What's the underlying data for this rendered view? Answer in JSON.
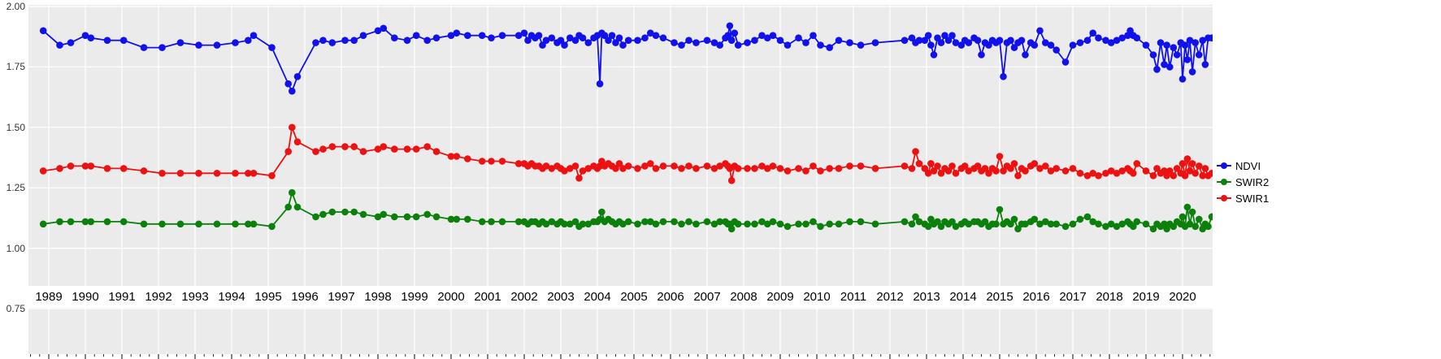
{
  "chart_data": {
    "type": "line",
    "title": "",
    "xlabel": "",
    "ylabel": "",
    "grid": true,
    "panel_bg": "#EBEBEB",
    "grid_color": "#FFFFFF",
    "tick_color": "#333333",
    "x_range": [
      1988.44,
      2020.82
    ],
    "y_range": [
      0.56,
      2.01
    ],
    "x_ticks": [
      1989,
      1990,
      1991,
      1992,
      1993,
      1994,
      1995,
      1996,
      1997,
      1998,
      1999,
      2000,
      2001,
      2002,
      2003,
      2004,
      2005,
      2006,
      2007,
      2008,
      2009,
      2010,
      2011,
      2012,
      2013,
      2014,
      2015,
      2016,
      2017,
      2018,
      2019,
      2020
    ],
    "x_minor_tick_step": 0.25,
    "y_ticks": [
      {
        "label": "2.00",
        "value": 2.0
      },
      {
        "label": "1.75",
        "value": 1.75
      },
      {
        "label": "1.50",
        "value": 1.5
      },
      {
        "label": "1.25",
        "value": 1.25
      },
      {
        "label": "1.00",
        "value": 1.0
      },
      {
        "label": "0.75",
        "value": 0.75
      }
    ],
    "legend": {
      "position": "right",
      "items": [
        {
          "label": "NDVI",
          "color": "#1111EE"
        },
        {
          "label": "SWIR2",
          "color": "#0B800B"
        },
        {
          "label": "SWIR1",
          "color": "#EE1111"
        }
      ]
    },
    "x": [
      1988.85,
      1989.3,
      1989.6,
      1990.0,
      1990.15,
      1990.6,
      1991.05,
      1991.6,
      1992.1,
      1992.6,
      1993.1,
      1993.6,
      1994.1,
      1994.45,
      1994.6,
      1995.1,
      1995.55,
      1995.65,
      1995.8,
      1996.3,
      1996.5,
      1996.75,
      1997.1,
      1997.35,
      1997.6,
      1998.0,
      1998.15,
      1998.45,
      1998.8,
      1999.05,
      1999.35,
      1999.6,
      2000.0,
      2000.15,
      2000.45,
      2000.85,
      2001.1,
      2001.4,
      2001.85,
      2002.0,
      2002.1,
      2002.2,
      2002.3,
      2002.4,
      2002.5,
      2002.6,
      2002.75,
      2002.9,
      2003.0,
      2003.1,
      2003.25,
      2003.4,
      2003.5,
      2003.6,
      2003.75,
      2003.9,
      2004.0,
      2004.07,
      2004.12,
      2004.2,
      2004.3,
      2004.4,
      2004.5,
      2004.6,
      2004.7,
      2004.85,
      2005.1,
      2005.3,
      2005.45,
      2005.6,
      2005.8,
      2006.1,
      2006.3,
      2006.5,
      2006.7,
      2007.0,
      2007.2,
      2007.35,
      2007.5,
      2007.57,
      2007.62,
      2007.67,
      2007.75,
      2007.85,
      2008.1,
      2008.3,
      2008.5,
      2008.65,
      2008.8,
      2009.0,
      2009.2,
      2009.5,
      2009.7,
      2009.9,
      2010.1,
      2010.35,
      2010.6,
      2010.9,
      2011.2,
      2011.6,
      2012.4,
      2012.6,
      2012.7,
      2012.8,
      2012.95,
      2013.05,
      2013.12,
      2013.2,
      2013.3,
      2013.4,
      2013.5,
      2013.6,
      2013.7,
      2013.8,
      2013.95,
      2014.05,
      2014.15,
      2014.3,
      2014.4,
      2014.5,
      2014.6,
      2014.7,
      2014.8,
      2014.9,
      2015.0,
      2015.1,
      2015.2,
      2015.3,
      2015.4,
      2015.5,
      2015.6,
      2015.7,
      2015.85,
      2015.95,
      2016.1,
      2016.25,
      2016.4,
      2016.55,
      2016.8,
      2017.0,
      2017.2,
      2017.4,
      2017.55,
      2017.7,
      2017.9,
      2018.05,
      2018.2,
      2018.35,
      2018.5,
      2018.57,
      2018.65,
      2018.75,
      2019.0,
      2019.2,
      2019.3,
      2019.4,
      2019.5,
      2019.57,
      2019.65,
      2019.75,
      2019.85,
      2019.95,
      2020.0,
      2020.07,
      2020.13,
      2020.2,
      2020.27,
      2020.35,
      2020.45,
      2020.55,
      2020.62,
      2020.7,
      2020.8
    ],
    "series": [
      {
        "name": "NDVI",
        "color": "#1111EE",
        "values": [
          1.9,
          1.84,
          1.85,
          1.88,
          1.87,
          1.86,
          1.86,
          1.83,
          1.83,
          1.85,
          1.84,
          1.84,
          1.85,
          1.86,
          1.88,
          1.83,
          1.68,
          1.65,
          1.71,
          1.85,
          1.86,
          1.85,
          1.86,
          1.86,
          1.88,
          1.9,
          1.91,
          1.87,
          1.86,
          1.88,
          1.86,
          1.87,
          1.88,
          1.89,
          1.88,
          1.88,
          1.87,
          1.88,
          1.88,
          1.89,
          1.86,
          1.88,
          1.87,
          1.88,
          1.84,
          1.86,
          1.87,
          1.85,
          1.86,
          1.84,
          1.87,
          1.86,
          1.88,
          1.87,
          1.85,
          1.87,
          1.88,
          1.68,
          1.89,
          1.88,
          1.86,
          1.88,
          1.85,
          1.87,
          1.84,
          1.86,
          1.86,
          1.87,
          1.89,
          1.88,
          1.87,
          1.85,
          1.84,
          1.86,
          1.85,
          1.86,
          1.85,
          1.84,
          1.87,
          1.88,
          1.92,
          1.86,
          1.89,
          1.84,
          1.85,
          1.86,
          1.88,
          1.87,
          1.88,
          1.86,
          1.84,
          1.87,
          1.85,
          1.88,
          1.84,
          1.83,
          1.86,
          1.85,
          1.84,
          1.85,
          1.86,
          1.87,
          1.85,
          1.86,
          1.86,
          1.88,
          1.84,
          1.8,
          1.87,
          1.85,
          1.88,
          1.86,
          1.88,
          1.85,
          1.84,
          1.86,
          1.85,
          1.87,
          1.86,
          1.8,
          1.85,
          1.84,
          1.86,
          1.85,
          1.86,
          1.71,
          1.85,
          1.86,
          1.83,
          1.85,
          1.86,
          1.8,
          1.85,
          1.84,
          1.9,
          1.85,
          1.84,
          1.82,
          1.77,
          1.84,
          1.85,
          1.86,
          1.89,
          1.87,
          1.86,
          1.85,
          1.86,
          1.87,
          1.88,
          1.9,
          1.88,
          1.87,
          1.84,
          1.8,
          1.74,
          1.85,
          1.76,
          1.84,
          1.75,
          1.83,
          1.8,
          1.85,
          1.7,
          1.84,
          1.78,
          1.86,
          1.73,
          1.85,
          1.8,
          1.86,
          1.76,
          1.87,
          1.87
        ]
      },
      {
        "name": "SWIR2",
        "color": "#0B800B",
        "values": [
          1.1,
          1.11,
          1.11,
          1.11,
          1.11,
          1.11,
          1.11,
          1.1,
          1.1,
          1.1,
          1.1,
          1.1,
          1.1,
          1.1,
          1.1,
          1.09,
          1.17,
          1.23,
          1.17,
          1.13,
          1.14,
          1.15,
          1.15,
          1.15,
          1.14,
          1.13,
          1.14,
          1.13,
          1.13,
          1.13,
          1.14,
          1.13,
          1.12,
          1.12,
          1.12,
          1.11,
          1.11,
          1.11,
          1.11,
          1.11,
          1.1,
          1.11,
          1.11,
          1.1,
          1.11,
          1.1,
          1.11,
          1.1,
          1.11,
          1.1,
          1.1,
          1.11,
          1.09,
          1.1,
          1.1,
          1.11,
          1.11,
          1.12,
          1.15,
          1.11,
          1.12,
          1.11,
          1.1,
          1.11,
          1.1,
          1.11,
          1.1,
          1.11,
          1.11,
          1.1,
          1.11,
          1.11,
          1.1,
          1.11,
          1.1,
          1.11,
          1.1,
          1.11,
          1.11,
          1.1,
          1.1,
          1.08,
          1.11,
          1.1,
          1.1,
          1.1,
          1.11,
          1.1,
          1.11,
          1.1,
          1.09,
          1.1,
          1.1,
          1.11,
          1.09,
          1.1,
          1.1,
          1.11,
          1.11,
          1.1,
          1.11,
          1.1,
          1.13,
          1.11,
          1.1,
          1.09,
          1.12,
          1.1,
          1.11,
          1.09,
          1.11,
          1.1,
          1.11,
          1.09,
          1.1,
          1.11,
          1.1,
          1.11,
          1.11,
          1.1,
          1.11,
          1.09,
          1.1,
          1.1,
          1.16,
          1.1,
          1.11,
          1.1,
          1.12,
          1.08,
          1.1,
          1.1,
          1.11,
          1.12,
          1.1,
          1.11,
          1.1,
          1.1,
          1.09,
          1.1,
          1.12,
          1.13,
          1.11,
          1.1,
          1.09,
          1.1,
          1.09,
          1.1,
          1.11,
          1.1,
          1.09,
          1.11,
          1.1,
          1.08,
          1.1,
          1.09,
          1.1,
          1.08,
          1.1,
          1.09,
          1.11,
          1.1,
          1.13,
          1.09,
          1.17,
          1.1,
          1.15,
          1.09,
          1.12,
          1.08,
          1.1,
          1.09,
          1.13
        ]
      },
      {
        "name": "SWIR1",
        "color": "#EE1111",
        "values": [
          1.32,
          1.33,
          1.34,
          1.34,
          1.34,
          1.33,
          1.33,
          1.32,
          1.31,
          1.31,
          1.31,
          1.31,
          1.31,
          1.31,
          1.31,
          1.3,
          1.4,
          1.5,
          1.44,
          1.4,
          1.41,
          1.42,
          1.42,
          1.42,
          1.4,
          1.41,
          1.42,
          1.41,
          1.41,
          1.41,
          1.42,
          1.4,
          1.38,
          1.38,
          1.37,
          1.36,
          1.36,
          1.36,
          1.35,
          1.35,
          1.34,
          1.35,
          1.34,
          1.34,
          1.33,
          1.34,
          1.33,
          1.34,
          1.33,
          1.32,
          1.33,
          1.34,
          1.29,
          1.32,
          1.33,
          1.34,
          1.33,
          1.34,
          1.36,
          1.34,
          1.35,
          1.34,
          1.33,
          1.35,
          1.33,
          1.34,
          1.33,
          1.34,
          1.35,
          1.33,
          1.34,
          1.34,
          1.33,
          1.34,
          1.33,
          1.34,
          1.33,
          1.34,
          1.35,
          1.34,
          1.33,
          1.28,
          1.34,
          1.33,
          1.33,
          1.33,
          1.34,
          1.33,
          1.34,
          1.33,
          1.32,
          1.33,
          1.32,
          1.34,
          1.32,
          1.33,
          1.33,
          1.34,
          1.34,
          1.33,
          1.34,
          1.33,
          1.4,
          1.35,
          1.33,
          1.31,
          1.35,
          1.32,
          1.34,
          1.31,
          1.33,
          1.32,
          1.34,
          1.31,
          1.33,
          1.34,
          1.32,
          1.33,
          1.34,
          1.32,
          1.33,
          1.31,
          1.33,
          1.32,
          1.38,
          1.32,
          1.34,
          1.33,
          1.35,
          1.3,
          1.33,
          1.32,
          1.34,
          1.35,
          1.33,
          1.34,
          1.32,
          1.33,
          1.32,
          1.33,
          1.31,
          1.3,
          1.31,
          1.3,
          1.31,
          1.32,
          1.31,
          1.32,
          1.33,
          1.32,
          1.31,
          1.35,
          1.32,
          1.3,
          1.33,
          1.31,
          1.32,
          1.3,
          1.32,
          1.3,
          1.33,
          1.31,
          1.35,
          1.3,
          1.37,
          1.32,
          1.35,
          1.31,
          1.34,
          1.3,
          1.33,
          1.3,
          1.31
        ]
      }
    ]
  }
}
